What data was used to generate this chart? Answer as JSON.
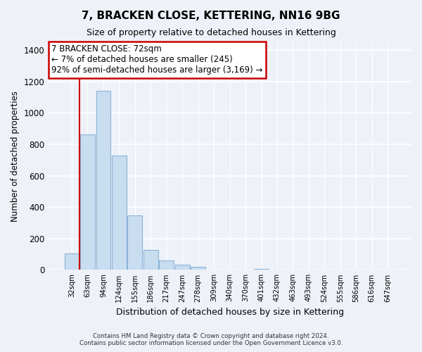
{
  "title": "7, BRACKEN CLOSE, KETTERING, NN16 9BG",
  "subtitle": "Size of property relative to detached houses in Kettering",
  "xlabel": "Distribution of detached houses by size in Kettering",
  "ylabel": "Number of detached properties",
  "bar_labels": [
    "32sqm",
    "63sqm",
    "94sqm",
    "124sqm",
    "155sqm",
    "186sqm",
    "217sqm",
    "247sqm",
    "278sqm",
    "309sqm",
    "340sqm",
    "370sqm",
    "401sqm",
    "432sqm",
    "463sqm",
    "493sqm",
    "524sqm",
    "555sqm",
    "586sqm",
    "616sqm",
    "647sqm"
  ],
  "bar_values": [
    107,
    862,
    1140,
    730,
    345,
    128,
    62,
    32,
    20,
    0,
    0,
    0,
    8,
    0,
    0,
    0,
    0,
    0,
    0,
    0,
    0
  ],
  "bar_color": "#c9ddf0",
  "bar_edge_color": "#8ab4d8",
  "vline_x": 1.0,
  "vline_color": "#cc0000",
  "ylim": [
    0,
    1450
  ],
  "yticks": [
    0,
    200,
    400,
    600,
    800,
    1000,
    1200,
    1400
  ],
  "annotation_title": "7 BRACKEN CLOSE: 72sqm",
  "annotation_line1": "← 7% of detached houses are smaller (245)",
  "annotation_line2": "92% of semi-detached houses are larger (3,169) →",
  "annotation_box_color": "#ffffff",
  "annotation_box_edgecolor": "#cc0000",
  "footer_line1": "Contains HM Land Registry data © Crown copyright and database right 2024.",
  "footer_line2": "Contains public sector information licensed under the Open Government Licence v3.0.",
  "background_color": "#eef2f8",
  "grid_color": "#ffffff"
}
